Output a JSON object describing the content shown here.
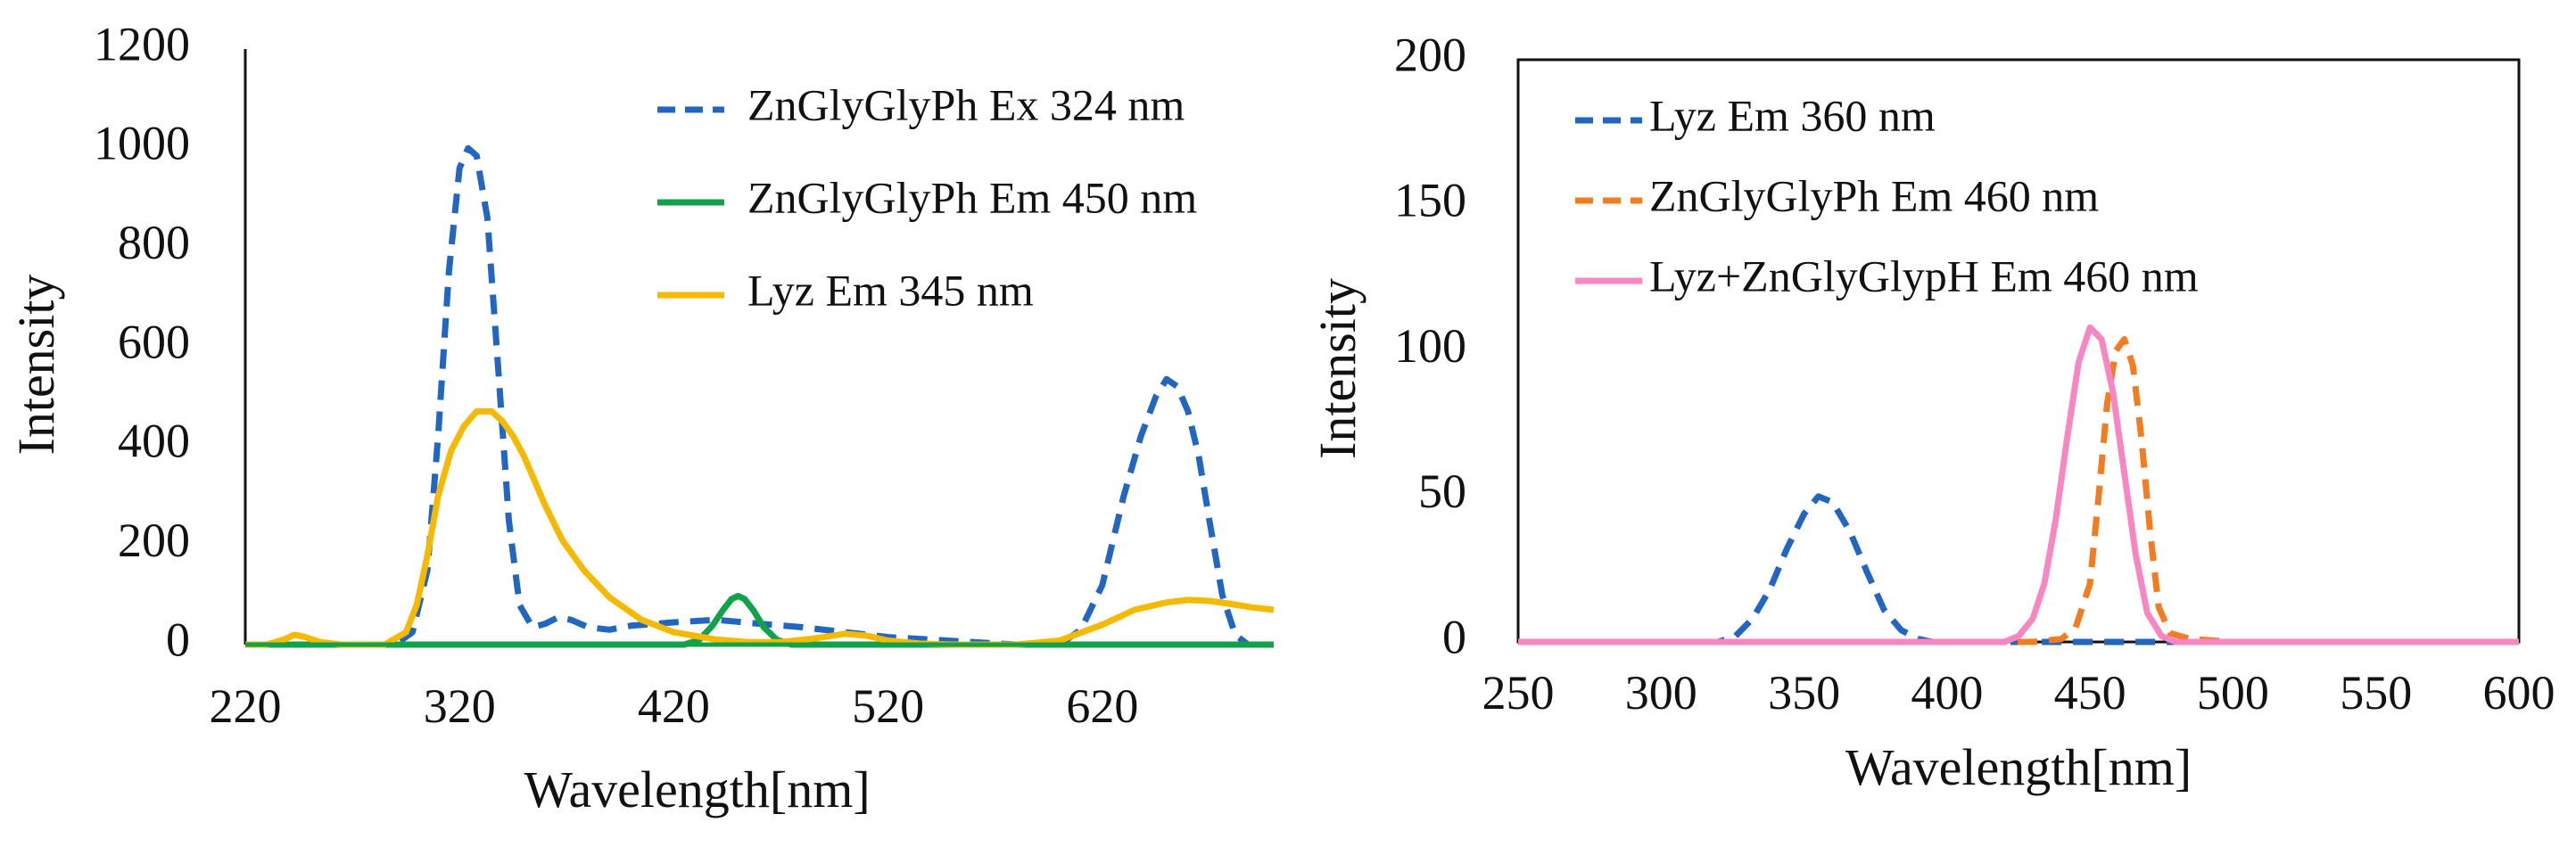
{
  "chart_data": [
    {
      "type": "line",
      "title": "",
      "xlabel": "Wavelength[nm]",
      "ylabel": "Intensity",
      "xlim": [
        220,
        700
      ],
      "ylim": [
        0,
        1200
      ],
      "x_ticks": [
        220,
        320,
        420,
        520,
        620
      ],
      "x_tick_labels": [
        "220",
        "320",
        "420",
        "520",
        "620"
      ],
      "y_ticks": [
        0,
        200,
        400,
        600,
        800,
        1000,
        1200
      ],
      "y_tick_labels": [
        "0",
        "200",
        "400",
        "600",
        "800",
        "1000",
        "1200"
      ],
      "grid": false,
      "legend_position": "top-right",
      "series": [
        {
          "name": "ZnGlyGlyPh Ex 324 nm",
          "color": "#2166c0",
          "dash": "dashed",
          "x": [
            220,
            290,
            298,
            305,
            310,
            315,
            320,
            324,
            328,
            333,
            338,
            343,
            348,
            354,
            360,
            366,
            372,
            380,
            390,
            400,
            420,
            440,
            460,
            480,
            500,
            520,
            540,
            560,
            580,
            600,
            610,
            620,
            630,
            638,
            645,
            650,
            655,
            660,
            665,
            670,
            676,
            682,
            688,
            692,
            696,
            700
          ],
          "y": [
            0,
            0,
            25,
            150,
            420,
            750,
            960,
            1000,
            985,
            860,
            560,
            250,
            80,
            35,
            42,
            55,
            50,
            35,
            30,
            38,
            45,
            50,
            42,
            35,
            25,
            15,
            10,
            5,
            0,
            0,
            30,
            120,
            300,
            420,
            500,
            535,
            520,
            470,
            380,
            250,
            100,
            20,
            0,
            0,
            0,
            0
          ]
        },
        {
          "name": "ZnGlyGlyPh Em 450 nm",
          "color": "#12a34a",
          "dash": "solid",
          "x": [
            220,
            425,
            432,
            438,
            443,
            447,
            450,
            453,
            457,
            462,
            468,
            475,
            700
          ],
          "y": [
            0,
            0,
            10,
            38,
            70,
            92,
            98,
            92,
            70,
            35,
            10,
            0,
            0
          ],
          "points_total": 13
        },
        {
          "name": "Lyz Em 345 nm",
          "color": "#f5b900",
          "dash": "solid",
          "x": [
            220,
            230,
            238,
            243,
            248,
            255,
            265,
            285,
            295,
            300,
            305,
            310,
            316,
            322,
            328,
            335,
            340,
            345,
            350,
            355,
            360,
            368,
            378,
            390,
            405,
            420,
            440,
            455,
            470,
            485,
            500,
            510,
            520,
            535,
            550,
            565,
            580,
            600,
            620,
            635,
            650,
            660,
            670,
            680,
            690,
            700
          ],
          "y": [
            0,
            0,
            10,
            20,
            15,
            5,
            0,
            0,
            25,
            80,
            180,
            300,
            390,
            440,
            470,
            470,
            450,
            420,
            380,
            330,
            280,
            210,
            150,
            95,
            50,
            25,
            10,
            5,
            5,
            12,
            22,
            18,
            8,
            2,
            0,
            0,
            0,
            8,
            40,
            70,
            85,
            90,
            88,
            82,
            75,
            70
          ]
        }
      ]
    },
    {
      "type": "line",
      "title": "",
      "xlabel": "Wavelength[nm]",
      "ylabel": "Intensity",
      "xlim": [
        250,
        600
      ],
      "ylim": [
        0,
        200
      ],
      "x_ticks": [
        250,
        300,
        350,
        400,
        450,
        500,
        550,
        600
      ],
      "x_tick_labels": [
        "250",
        "300",
        "350",
        "400",
        "450",
        "500",
        "550",
        "600"
      ],
      "y_ticks": [
        0,
        50,
        100,
        150,
        200
      ],
      "y_tick_labels": [
        "0",
        "50",
        "100",
        "150",
        "200"
      ],
      "grid": false,
      "legend_position": "top-left",
      "series": [
        {
          "name": "Lyz Em 360 nm",
          "color": "#2166c0",
          "dash": "dashed",
          "x": [
            250,
            320,
            326,
            332,
            338,
            344,
            350,
            355,
            360,
            366,
            372,
            378,
            384,
            390,
            395,
            400,
            420,
            440,
            460,
            480,
            500,
            600
          ],
          "y": [
            0,
            0,
            2,
            8,
            18,
            32,
            44,
            50,
            48,
            38,
            24,
            11,
            4,
            1,
            0,
            0,
            0,
            0,
            0,
            0,
            0,
            0
          ]
        },
        {
          "name": "ZnGlyGlyPh Em 460 nm",
          "color": "#f27c1f",
          "dash": "dashed",
          "x": [
            250,
            400,
            430,
            440,
            445,
            450,
            453,
            456,
            459,
            462,
            465,
            468,
            471,
            474,
            478,
            485,
            500,
            520,
            550,
            600
          ],
          "y": [
            0,
            0,
            0,
            1,
            5,
            20,
            50,
            82,
            100,
            104,
            95,
            70,
            38,
            12,
            3,
            1,
            0,
            0,
            0,
            0
          ]
        },
        {
          "name": "Lyz+ZnGlyGlypH  Em 460 nm",
          "color": "#f787c2",
          "dash": "solid",
          "x": [
            250,
            300,
            350,
            400,
            420,
            425,
            430,
            434,
            438,
            442,
            446,
            450,
            454,
            458,
            462,
            466,
            470,
            475,
            480,
            500,
            550,
            600
          ],
          "y": [
            0,
            0,
            0,
            0,
            0,
            2,
            8,
            20,
            42,
            70,
            96,
            108,
            104,
            86,
            58,
            30,
            10,
            2,
            0,
            0,
            0,
            0
          ]
        }
      ]
    }
  ]
}
